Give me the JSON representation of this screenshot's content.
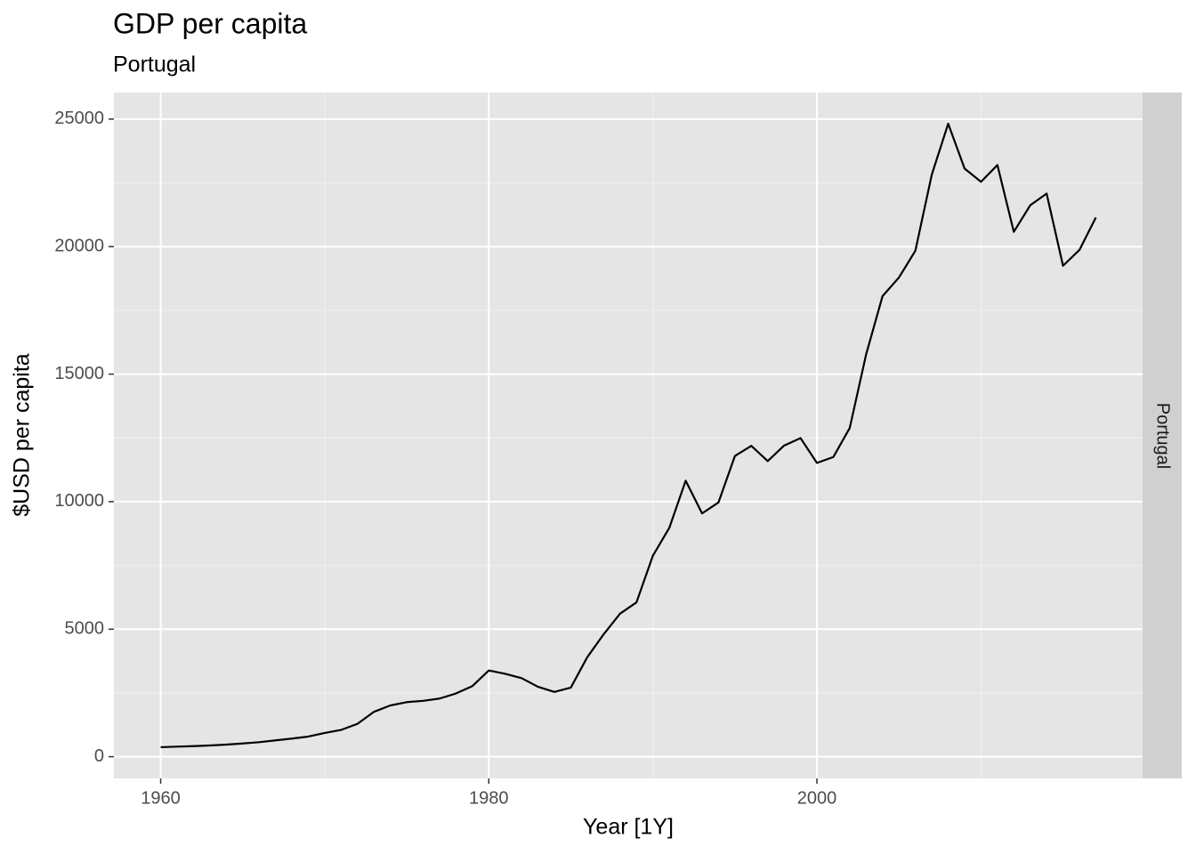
{
  "chart_data": {
    "type": "line",
    "title": "GDP per capita",
    "subtitle": "Portugal",
    "facet_label": "Portugal",
    "xlabel": "Year [1Y]",
    "ylabel": "$USD per capita",
    "x": [
      1960,
      1961,
      1962,
      1963,
      1964,
      1965,
      1966,
      1967,
      1968,
      1969,
      1970,
      1971,
      1972,
      1973,
      1974,
      1975,
      1976,
      1977,
      1978,
      1979,
      1980,
      1981,
      1982,
      1983,
      1984,
      1985,
      1986,
      1987,
      1988,
      1989,
      1990,
      1991,
      1992,
      1993,
      1994,
      1995,
      1996,
      1997,
      1998,
      1999,
      2000,
      2001,
      2002,
      2003,
      2004,
      2005,
      2006,
      2007,
      2008,
      2009,
      2010,
      2011,
      2012,
      2013,
      2014,
      2015,
      2016,
      2017
    ],
    "values": [
      372,
      394,
      415,
      440,
      475,
      520,
      570,
      640,
      710,
      790,
      930,
      1050,
      1290,
      1760,
      2010,
      2140,
      2190,
      2280,
      2480,
      2770,
      3380,
      3250,
      3080,
      2740,
      2540,
      2710,
      3900,
      4800,
      5610,
      6050,
      7880,
      8970,
      10820,
      9540,
      9970,
      11790,
      12190,
      11590,
      12200,
      12490,
      11520,
      11750,
      12890,
      15780,
      18060,
      18790,
      19840,
      22820,
      24820,
      23060,
      22540,
      23200,
      20580,
      21620,
      22080,
      19250,
      19870,
      21140
    ],
    "color": "#000000",
    "xlim": [
      1957.15,
      2019.85
    ],
    "xticks": [
      1960,
      1980,
      2000
    ],
    "xminor_ticks": [
      1970,
      1990,
      2010
    ],
    "ylim": [
      -850,
      26042
    ],
    "yticks": [
      0,
      5000,
      10000,
      15000,
      20000,
      25000
    ],
    "yminor_ticks": [
      2500,
      7500,
      12500,
      17500,
      22500
    ],
    "grid": true
  }
}
